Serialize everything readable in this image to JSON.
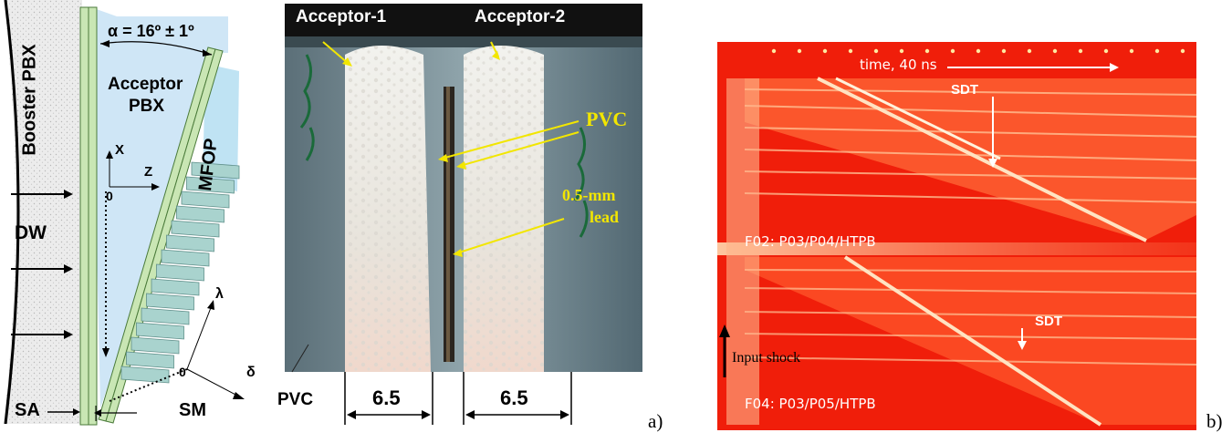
{
  "schematic": {
    "booster": "Booster PBX",
    "acceptor": [
      "Acceptor",
      "PBX"
    ],
    "angle": "α = 16º ± 1º",
    "mfop": "MFOP",
    "x_axis": "X",
    "z_axis": "Z",
    "origin_top": "0",
    "dw": "DW",
    "lambda": "λ",
    "delta": "δ",
    "origin_bottom": "0",
    "sa": "SA",
    "sm": "SM"
  },
  "photo": {
    "acceptor1": "Acceptor-1",
    "acceptor2": "Acceptor-2",
    "pvc_right": "PVC",
    "lead": [
      "0.5-mm",
      "lead"
    ],
    "pvc_left": "PVC",
    "dim1": "6.5",
    "dim2": "6.5",
    "panel_label": "a)"
  },
  "streak": {
    "time": "time, 40 ns",
    "sdt_top": "SDT",
    "f02": "F02: P03/P04/HTPB",
    "sdt_bottom": "SDT",
    "input_shock": "Input shock",
    "f04": "F04: P03/P05/HTPB",
    "panel_label": "b)"
  },
  "colors": {
    "plate_green": "#c9e6b4",
    "pbx_blue": "#cfe6f6",
    "streak_red": "#f01e0a",
    "arrow_yellow": "#f2e600",
    "label_yellow": "#f2e600"
  }
}
